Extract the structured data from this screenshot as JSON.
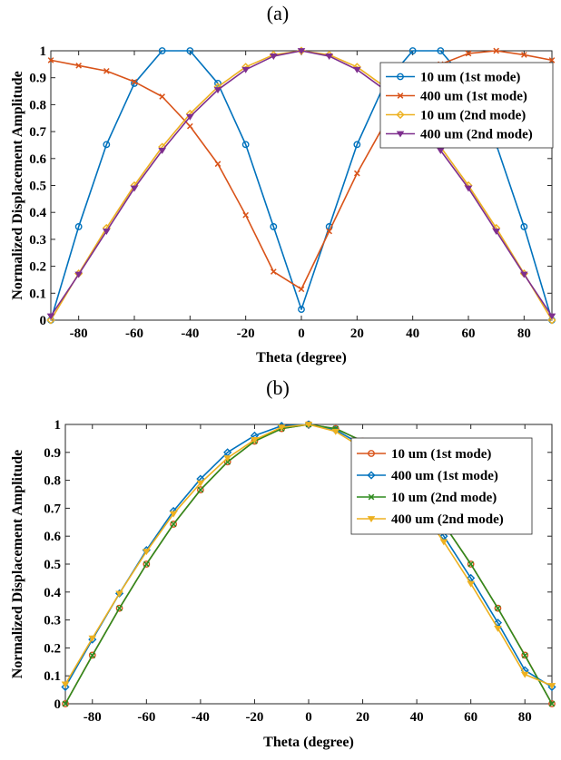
{
  "figure": {
    "panel_labels": [
      "(a)",
      "(b)"
    ]
  },
  "chart_data": [
    {
      "type": "line",
      "panel": "(a)",
      "xlabel": "Theta (degree)",
      "ylabel": "Normalized Displacement Amplitude",
      "xlim": [
        -90,
        90
      ],
      "ylim": [
        0,
        1
      ],
      "xticks": [
        -80,
        -60,
        -40,
        -20,
        0,
        20,
        40,
        60,
        80
      ],
      "yticks": [
        0,
        0.1,
        0.2,
        0.3,
        0.4,
        0.5,
        0.6,
        0.7,
        0.8,
        0.9,
        1
      ],
      "ytick_labels": [
        "0",
        "0.1",
        "0.2",
        "0.3",
        "0.4",
        "0.5",
        "0.6",
        "0.7",
        "0.8",
        "0.9",
        "1"
      ],
      "grid": false,
      "legend_position": "top-right",
      "x": [
        -90,
        -80,
        -70,
        -60,
        -50,
        -40,
        -30,
        -20,
        -10,
        0,
        10,
        20,
        30,
        40,
        50,
        60,
        70,
        80,
        90
      ],
      "series": [
        {
          "name": "10 um (1st mode)",
          "color": "#0072BD",
          "marker": "circle",
          "values": [
            0.0,
            0.347,
            0.652,
            0.879,
            1.0,
            1.0,
            0.879,
            0.652,
            0.347,
            0.04,
            0.347,
            0.652,
            0.879,
            1.0,
            1.0,
            0.879,
            0.652,
            0.347,
            0.0
          ]
        },
        {
          "name": "400 um (1st mode)",
          "color": "#D95319",
          "marker": "x",
          "values": [
            0.965,
            0.945,
            0.925,
            0.885,
            0.83,
            0.72,
            0.58,
            0.39,
            0.18,
            0.115,
            0.33,
            0.545,
            0.73,
            0.865,
            0.95,
            0.99,
            1.0,
            0.985,
            0.965
          ]
        },
        {
          "name": "10 um (2nd mode)",
          "color": "#EDB120",
          "marker": "diamond",
          "values": [
            0.0,
            0.173,
            0.342,
            0.5,
            0.643,
            0.766,
            0.866,
            0.94,
            0.985,
            1.0,
            0.985,
            0.94,
            0.866,
            0.766,
            0.643,
            0.5,
            0.342,
            0.173,
            0.0
          ]
        },
        {
          "name": "400 um (2nd mode)",
          "color": "#7E2F8E",
          "marker": "triangle-down",
          "values": [
            0.015,
            0.17,
            0.33,
            0.49,
            0.63,
            0.755,
            0.855,
            0.93,
            0.98,
            1.0,
            0.98,
            0.93,
            0.855,
            0.755,
            0.63,
            0.49,
            0.33,
            0.17,
            0.015
          ]
        }
      ]
    },
    {
      "type": "line",
      "panel": "(b)",
      "xlabel": "Theta (degree)",
      "ylabel": "Normalized Displacement Amplitude",
      "xlim": [
        -90,
        90
      ],
      "ylim": [
        0,
        1
      ],
      "xticks": [
        -80,
        -60,
        -40,
        -20,
        0,
        20,
        40,
        60,
        80
      ],
      "yticks": [
        0,
        0.1,
        0.2,
        0.3,
        0.4,
        0.5,
        0.6,
        0.7,
        0.8,
        0.9,
        1
      ],
      "ytick_labels": [
        "0",
        "0.1",
        "0.2",
        "0.3",
        "0.4",
        "0.5",
        "0.6",
        "0.7",
        "0.8",
        "0.9",
        "1"
      ],
      "grid": false,
      "legend_position": "top-right",
      "x": [
        -90,
        -80,
        -70,
        -60,
        -50,
        -40,
        -30,
        -20,
        -10,
        0,
        10,
        20,
        30,
        40,
        50,
        60,
        70,
        80,
        90
      ],
      "series": [
        {
          "name": "10 um (1st mode)",
          "color": "#D95319",
          "marker": "circle",
          "values": [
            0.0,
            0.174,
            0.342,
            0.5,
            0.643,
            0.766,
            0.866,
            0.94,
            0.985,
            1.0,
            0.985,
            0.94,
            0.866,
            0.766,
            0.643,
            0.5,
            0.342,
            0.174,
            0.0
          ]
        },
        {
          "name": "400 um (1st mode)",
          "color": "#0072BD",
          "marker": "diamond",
          "values": [
            0.06,
            0.23,
            0.395,
            0.55,
            0.69,
            0.805,
            0.9,
            0.96,
            0.995,
            1.0,
            0.98,
            0.925,
            0.84,
            0.73,
            0.6,
            0.45,
            0.29,
            0.12,
            0.06
          ]
        },
        {
          "name": "10 um (2nd mode)",
          "color": "#2E8B1E",
          "marker": "x",
          "values": [
            0.0,
            0.173,
            0.342,
            0.5,
            0.643,
            0.766,
            0.866,
            0.94,
            0.985,
            1.0,
            0.985,
            0.94,
            0.866,
            0.766,
            0.643,
            0.5,
            0.342,
            0.173,
            0.0
          ]
        },
        {
          "name": "400 um (2nd mode)",
          "color": "#EDB120",
          "marker": "triangle-down",
          "values": [
            0.07,
            0.235,
            0.395,
            0.545,
            0.68,
            0.79,
            0.88,
            0.945,
            0.99,
            1.0,
            0.975,
            0.915,
            0.83,
            0.715,
            0.58,
            0.43,
            0.27,
            0.105,
            0.065
          ]
        }
      ]
    }
  ]
}
